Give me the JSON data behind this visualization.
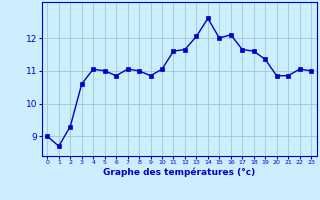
{
  "x": [
    0,
    1,
    2,
    3,
    4,
    5,
    6,
    7,
    8,
    9,
    10,
    11,
    12,
    13,
    14,
    15,
    16,
    17,
    18,
    19,
    20,
    21,
    22,
    23
  ],
  "y": [
    9.0,
    8.7,
    9.3,
    10.6,
    11.05,
    11.0,
    10.85,
    11.05,
    11.0,
    10.85,
    11.05,
    11.6,
    11.65,
    12.05,
    12.6,
    12.0,
    12.1,
    11.65,
    11.6,
    11.35,
    10.85,
    10.85,
    11.05,
    11.0
  ],
  "line_color": "#0000cc",
  "bg_color": "#cceeff",
  "grid_color": "#99cccc",
  "xlabel": "Graphe des températures (°c)",
  "xlabel_color": "#0000cc",
  "tick_color": "#0000cc",
  "ylim": [
    8.4,
    13.1
  ],
  "yticks": [
    9,
    10,
    11,
    12
  ],
  "xticks": [
    0,
    1,
    2,
    3,
    4,
    5,
    6,
    7,
    8,
    9,
    10,
    11,
    12,
    13,
    14,
    15,
    16,
    17,
    18,
    19,
    20,
    21,
    22,
    23
  ],
  "marker": "s",
  "markersize": 2.5,
  "linewidth": 1.0
}
